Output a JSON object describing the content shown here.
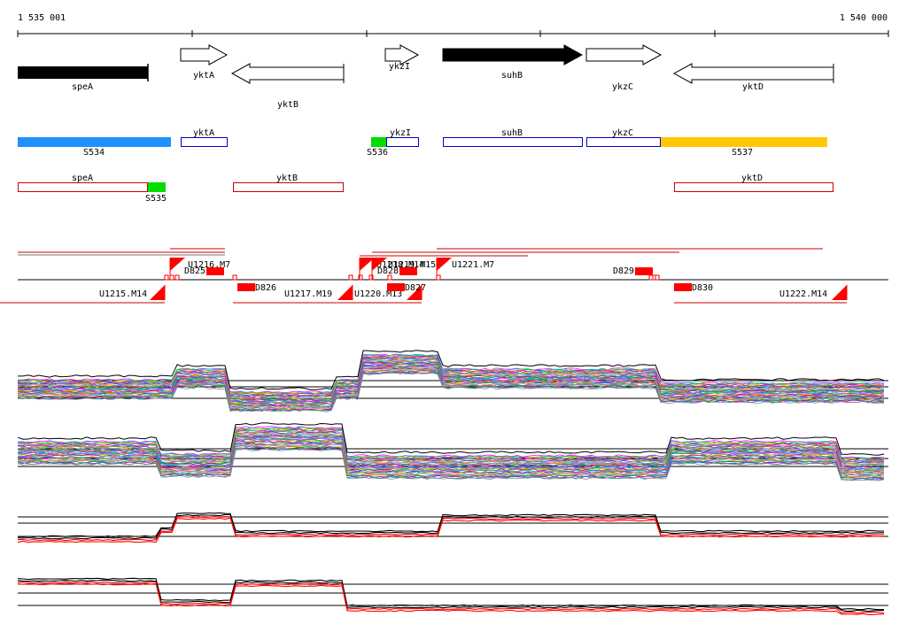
{
  "ruler": {
    "start_label": "1 535 001",
    "end_label": "1 540 000"
  },
  "genes": [
    {
      "label": "speA",
      "style": "filled",
      "direction": "none"
    },
    {
      "label": "yktA",
      "style": "open",
      "direction": "right"
    },
    {
      "label": "yktB",
      "style": "open",
      "direction": "left"
    },
    {
      "label": "ykzI",
      "style": "open",
      "direction": "right"
    },
    {
      "label": "suhB",
      "style": "filled",
      "direction": "right"
    },
    {
      "label": "ykzC",
      "style": "open",
      "direction": "right"
    },
    {
      "label": "yktD",
      "style": "open",
      "direction": "left"
    }
  ],
  "transcript_boxes_row1": [
    {
      "label": "S534",
      "kind": "segment",
      "color": "#1e90ff"
    },
    {
      "label": "yktA",
      "kind": "gene",
      "color": "#0000cc"
    },
    {
      "label": "S536",
      "kind": "segment",
      "color": "#00dd00"
    },
    {
      "label": "ykzI",
      "kind": "gene",
      "color": "#0000cc"
    },
    {
      "label": "suhB",
      "kind": "gene",
      "color": "#0000cc"
    },
    {
      "label": "ykzC",
      "kind": "gene",
      "color": "#0000cc"
    },
    {
      "label": "S537",
      "kind": "segment",
      "color": "#ffc800"
    }
  ],
  "transcript_boxes_row2": [
    {
      "label": "speA",
      "kind": "gene",
      "color": "#cc0000"
    },
    {
      "label": "S535",
      "kind": "segment",
      "color": "#00dd00"
    },
    {
      "label": "yktB",
      "kind": "gene",
      "color": "#cc0000"
    },
    {
      "label": "yktD",
      "kind": "gene",
      "color": "#cc0000"
    }
  ],
  "upshift_labels": [
    "U1215.M14",
    "U1216.M7",
    "U1217.M19",
    "U1218.M14",
    "U1219.M15",
    "U1220.M13",
    "U1221.M7",
    "U1222.M14"
  ],
  "downshift_labels": [
    "D825",
    "D826",
    "D827",
    "D828",
    "D829",
    "D830"
  ],
  "colors": {
    "gene_fill": "#000000",
    "segment_blue": "#1e90ff",
    "segment_green": "#00dd00",
    "segment_orange": "#ffc800",
    "shift_red": "#ff0000",
    "gene_outline_blue": "#0000cc",
    "gene_outline_red": "#cc0000"
  }
}
